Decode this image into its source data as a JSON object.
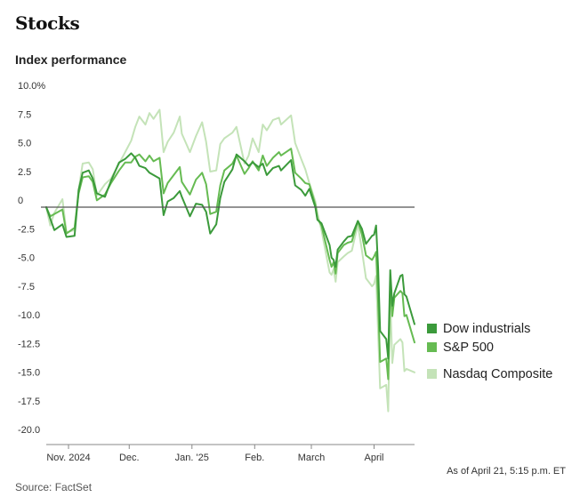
{
  "header": {
    "title": "Stocks",
    "subtitle": "Index performance"
  },
  "footer": {
    "as_of": "As of April 21, 5:15 p.m. ET",
    "source": "Source: FactSet"
  },
  "colors": {
    "dow": "#3b9a3b",
    "sp500": "#66bb52",
    "nasdaq": "#c4e3b8",
    "zero_line": "#555555",
    "grid": "#dddddd"
  },
  "chart_data": {
    "type": "line",
    "title": "Index performance",
    "xlabel": "",
    "ylabel": "",
    "ylim": [
      -20,
      10
    ],
    "xlim": [
      "2024-10-21",
      "2025-04-21"
    ],
    "yticks": [
      {
        "value": 10,
        "label": "10.0%"
      },
      {
        "value": 7.5,
        "label": "7.5"
      },
      {
        "value": 5,
        "label": "5.0"
      },
      {
        "value": 2.5,
        "label": "2.5"
      },
      {
        "value": 0,
        "label": "0"
      },
      {
        "value": -2.5,
        "label": "-2.5"
      },
      {
        "value": -5,
        "label": "-5.0"
      },
      {
        "value": -7.5,
        "label": "-7.5"
      },
      {
        "value": -10,
        "label": "-10.0"
      },
      {
        "value": -12.5,
        "label": "-12.5"
      },
      {
        "value": -15,
        "label": "-15.0"
      },
      {
        "value": -17.5,
        "label": "-17.5"
      },
      {
        "value": -20,
        "label": "-20.0"
      }
    ],
    "xticks": [
      {
        "date": "2024-11-01",
        "label": "Nov. 2024"
      },
      {
        "date": "2024-12-01",
        "label": "Dec."
      },
      {
        "date": "2025-01-01",
        "label": "Jan. '25"
      },
      {
        "date": "2025-02-01",
        "label": "Feb."
      },
      {
        "date": "2025-03-01",
        "label": "March"
      },
      {
        "date": "2025-04-01",
        "label": "April"
      }
    ],
    "legend": "right",
    "grid": false,
    "series": [
      {
        "name": "Nasdaq Composite",
        "color": "#c4e3b8",
        "points": [
          [
            "2024-10-21",
            0.0
          ],
          [
            "2024-10-23",
            -1.6
          ],
          [
            "2024-10-25",
            -0.5
          ],
          [
            "2024-10-29",
            0.7
          ],
          [
            "2024-10-31",
            -2.2
          ],
          [
            "2024-11-04",
            -2.0
          ],
          [
            "2024-11-06",
            1.5
          ],
          [
            "2024-11-08",
            3.8
          ],
          [
            "2024-11-11",
            3.9
          ],
          [
            "2024-11-13",
            3.3
          ],
          [
            "2024-11-15",
            1.0
          ],
          [
            "2024-11-19",
            2.0
          ],
          [
            "2024-11-22",
            2.5
          ],
          [
            "2024-11-26",
            3.8
          ],
          [
            "2024-11-29",
            4.8
          ],
          [
            "2024-12-02",
            5.8
          ],
          [
            "2024-12-04",
            7.0
          ],
          [
            "2024-12-06",
            7.9
          ],
          [
            "2024-12-09",
            7.2
          ],
          [
            "2024-12-11",
            8.2
          ],
          [
            "2024-12-13",
            7.7
          ],
          [
            "2024-12-16",
            8.5
          ],
          [
            "2024-12-18",
            4.8
          ],
          [
            "2024-12-20",
            5.7
          ],
          [
            "2024-12-23",
            6.5
          ],
          [
            "2024-12-26",
            7.9
          ],
          [
            "2024-12-27",
            6.4
          ],
          [
            "2024-12-31",
            4.8
          ],
          [
            "2025-01-03",
            6.2
          ],
          [
            "2025-01-06",
            7.4
          ],
          [
            "2025-01-08",
            5.7
          ],
          [
            "2025-01-10",
            3.1
          ],
          [
            "2025-01-13",
            3.2
          ],
          [
            "2025-01-15",
            5.5
          ],
          [
            "2025-01-17",
            6.0
          ],
          [
            "2025-01-21",
            6.5
          ],
          [
            "2025-01-23",
            7.0
          ],
          [
            "2025-01-27",
            3.8
          ],
          [
            "2025-01-29",
            4.5
          ],
          [
            "2025-01-31",
            6.0
          ],
          [
            "2025-02-03",
            4.8
          ],
          [
            "2025-02-05",
            7.2
          ],
          [
            "2025-02-07",
            6.7
          ],
          [
            "2025-02-10",
            7.6
          ],
          [
            "2025-02-13",
            7.8
          ],
          [
            "2025-02-14",
            7.2
          ],
          [
            "2025-02-19",
            8.0
          ],
          [
            "2025-02-21",
            5.6
          ],
          [
            "2025-02-24",
            4.2
          ],
          [
            "2025-02-26",
            3.3
          ],
          [
            "2025-02-28",
            2.1
          ],
          [
            "2025-03-03",
            0.5
          ],
          [
            "2025-03-04",
            -0.5
          ],
          [
            "2025-03-06",
            -2.0
          ],
          [
            "2025-03-10",
            -5.7
          ],
          [
            "2025-03-11",
            -5.9
          ],
          [
            "2025-03-12",
            -5.4
          ],
          [
            "2025-03-13",
            -6.5
          ],
          [
            "2025-03-14",
            -4.8
          ],
          [
            "2025-03-17",
            -4.3
          ],
          [
            "2025-03-19",
            -4.0
          ],
          [
            "2025-03-21",
            -3.8
          ],
          [
            "2025-03-24",
            -1.5
          ],
          [
            "2025-03-26",
            -3.8
          ],
          [
            "2025-03-28",
            -6.2
          ],
          [
            "2025-03-31",
            -6.9
          ],
          [
            "2025-04-01",
            -6.7
          ],
          [
            "2025-04-02",
            -6.0
          ],
          [
            "2025-04-03",
            -11.0
          ],
          [
            "2025-04-04",
            -15.8
          ],
          [
            "2025-04-07",
            -15.5
          ],
          [
            "2025-04-08",
            -17.8
          ],
          [
            "2025-04-09",
            -7.8
          ],
          [
            "2025-04-10",
            -13.6
          ],
          [
            "2025-04-11",
            -12.0
          ],
          [
            "2025-04-14",
            -11.5
          ],
          [
            "2025-04-15",
            -11.8
          ],
          [
            "2025-04-16",
            -14.3
          ],
          [
            "2025-04-17",
            -14.1
          ],
          [
            "2025-04-21",
            -14.4
          ]
        ]
      },
      {
        "name": "S&P 500",
        "color": "#66bb52",
        "points": [
          [
            "2024-10-21",
            0.0
          ],
          [
            "2024-10-23",
            -0.8
          ],
          [
            "2024-10-25",
            -0.6
          ],
          [
            "2024-10-29",
            -0.2
          ],
          [
            "2024-10-31",
            -2.3
          ],
          [
            "2024-11-04",
            -1.8
          ],
          [
            "2024-11-06",
            1.2
          ],
          [
            "2024-11-08",
            2.6
          ],
          [
            "2024-11-11",
            2.7
          ],
          [
            "2024-11-13",
            2.2
          ],
          [
            "2024-11-15",
            0.6
          ],
          [
            "2024-11-19",
            1.1
          ],
          [
            "2024-11-22",
            2.1
          ],
          [
            "2024-11-26",
            3.2
          ],
          [
            "2024-11-29",
            3.9
          ],
          [
            "2024-12-02",
            3.9
          ],
          [
            "2024-12-04",
            4.4
          ],
          [
            "2024-12-06",
            4.6
          ],
          [
            "2024-12-09",
            4.0
          ],
          [
            "2024-12-11",
            4.5
          ],
          [
            "2024-12-13",
            4.0
          ],
          [
            "2024-12-16",
            4.3
          ],
          [
            "2024-12-18",
            1.2
          ],
          [
            "2024-12-20",
            2.1
          ],
          [
            "2024-12-23",
            2.8
          ],
          [
            "2024-12-26",
            3.5
          ],
          [
            "2024-12-27",
            2.2
          ],
          [
            "2024-12-31",
            1.1
          ],
          [
            "2025-01-03",
            2.4
          ],
          [
            "2025-01-06",
            3.0
          ],
          [
            "2025-01-08",
            2.0
          ],
          [
            "2025-01-10",
            -0.6
          ],
          [
            "2025-01-13",
            -0.4
          ],
          [
            "2025-01-15",
            1.9
          ],
          [
            "2025-01-17",
            3.2
          ],
          [
            "2025-01-21",
            3.8
          ],
          [
            "2025-01-23",
            4.5
          ],
          [
            "2025-01-27",
            2.9
          ],
          [
            "2025-01-29",
            3.4
          ],
          [
            "2025-01-31",
            4.0
          ],
          [
            "2025-02-03",
            3.2
          ],
          [
            "2025-02-05",
            4.5
          ],
          [
            "2025-02-07",
            3.6
          ],
          [
            "2025-02-10",
            4.3
          ],
          [
            "2025-02-13",
            4.8
          ],
          [
            "2025-02-14",
            4.5
          ],
          [
            "2025-02-19",
            5.1
          ],
          [
            "2025-02-21",
            3.0
          ],
          [
            "2025-02-24",
            2.5
          ],
          [
            "2025-02-26",
            2.1
          ],
          [
            "2025-02-28",
            2.0
          ],
          [
            "2025-03-03",
            0.2
          ],
          [
            "2025-03-04",
            -1.0
          ],
          [
            "2025-03-06",
            -1.6
          ],
          [
            "2025-03-10",
            -4.6
          ],
          [
            "2025-03-11",
            -5.2
          ],
          [
            "2025-03-12",
            -4.8
          ],
          [
            "2025-03-13",
            -5.8
          ],
          [
            "2025-03-14",
            -4.0
          ],
          [
            "2025-03-17",
            -3.3
          ],
          [
            "2025-03-19",
            -3.1
          ],
          [
            "2025-03-21",
            -3.0
          ],
          [
            "2025-03-24",
            -1.2
          ],
          [
            "2025-03-26",
            -2.4
          ],
          [
            "2025-03-28",
            -4.2
          ],
          [
            "2025-03-31",
            -4.6
          ],
          [
            "2025-04-01",
            -4.3
          ],
          [
            "2025-04-02",
            -3.9
          ],
          [
            "2025-04-03",
            -8.4
          ],
          [
            "2025-04-04",
            -13.5
          ],
          [
            "2025-04-07",
            -13.2
          ],
          [
            "2025-04-08",
            -15.0
          ],
          [
            "2025-04-09",
            -6.4
          ],
          [
            "2025-04-10",
            -9.5
          ],
          [
            "2025-04-11",
            -7.9
          ],
          [
            "2025-04-14",
            -7.3
          ],
          [
            "2025-04-15",
            -7.5
          ],
          [
            "2025-04-16",
            -9.5
          ],
          [
            "2025-04-17",
            -9.4
          ],
          [
            "2025-04-21",
            -11.8
          ]
        ]
      },
      {
        "name": "Dow industrials",
        "color": "#3b9a3b",
        "points": [
          [
            "2024-10-21",
            0.0
          ],
          [
            "2024-10-23",
            -1.0
          ],
          [
            "2024-10-25",
            -2.0
          ],
          [
            "2024-10-29",
            -1.5
          ],
          [
            "2024-10-31",
            -2.6
          ],
          [
            "2024-11-04",
            -2.5
          ],
          [
            "2024-11-06",
            1.5
          ],
          [
            "2024-11-08",
            3.0
          ],
          [
            "2024-11-11",
            3.2
          ],
          [
            "2024-11-13",
            2.5
          ],
          [
            "2024-11-15",
            1.2
          ],
          [
            "2024-11-19",
            0.9
          ],
          [
            "2024-11-22",
            2.3
          ],
          [
            "2024-11-26",
            3.9
          ],
          [
            "2024-11-29",
            4.2
          ],
          [
            "2024-12-02",
            4.7
          ],
          [
            "2024-12-04",
            4.3
          ],
          [
            "2024-12-06",
            3.6
          ],
          [
            "2024-12-09",
            3.4
          ],
          [
            "2024-12-11",
            3.0
          ],
          [
            "2024-12-13",
            2.8
          ],
          [
            "2024-12-16",
            2.5
          ],
          [
            "2024-12-18",
            -0.7
          ],
          [
            "2024-12-20",
            0.5
          ],
          [
            "2024-12-23",
            0.8
          ],
          [
            "2024-12-26",
            1.4
          ],
          [
            "2024-12-27",
            0.9
          ],
          [
            "2024-12-31",
            -0.8
          ],
          [
            "2025-01-03",
            0.3
          ],
          [
            "2025-01-06",
            0.2
          ],
          [
            "2025-01-08",
            -0.4
          ],
          [
            "2025-01-10",
            -2.3
          ],
          [
            "2025-01-13",
            -1.5
          ],
          [
            "2025-01-15",
            0.8
          ],
          [
            "2025-01-17",
            2.2
          ],
          [
            "2025-01-21",
            3.3
          ],
          [
            "2025-01-23",
            4.6
          ],
          [
            "2025-01-27",
            4.0
          ],
          [
            "2025-01-29",
            3.6
          ],
          [
            "2025-01-31",
            3.9
          ],
          [
            "2025-02-03",
            3.5
          ],
          [
            "2025-02-05",
            3.8
          ],
          [
            "2025-02-07",
            2.8
          ],
          [
            "2025-02-10",
            3.4
          ],
          [
            "2025-02-13",
            3.6
          ],
          [
            "2025-02-14",
            3.2
          ],
          [
            "2025-02-19",
            4.1
          ],
          [
            "2025-02-21",
            1.9
          ],
          [
            "2025-02-24",
            1.5
          ],
          [
            "2025-02-26",
            1.0
          ],
          [
            "2025-02-28",
            1.6
          ],
          [
            "2025-03-03",
            0.0
          ],
          [
            "2025-03-04",
            -1.1
          ],
          [
            "2025-03-06",
            -1.4
          ],
          [
            "2025-03-10",
            -3.3
          ],
          [
            "2025-03-11",
            -4.4
          ],
          [
            "2025-03-12",
            -4.6
          ],
          [
            "2025-03-13",
            -5.2
          ],
          [
            "2025-03-14",
            -3.7
          ],
          [
            "2025-03-17",
            -3.0
          ],
          [
            "2025-03-19",
            -2.6
          ],
          [
            "2025-03-21",
            -2.5
          ],
          [
            "2025-03-24",
            -1.2
          ],
          [
            "2025-03-26",
            -1.9
          ],
          [
            "2025-03-28",
            -3.2
          ],
          [
            "2025-03-31",
            -2.5
          ],
          [
            "2025-04-01",
            -2.4
          ],
          [
            "2025-04-02",
            -1.6
          ],
          [
            "2025-04-03",
            -5.4
          ],
          [
            "2025-04-04",
            -10.8
          ],
          [
            "2025-04-07",
            -11.5
          ],
          [
            "2025-04-08",
            -13.2
          ],
          [
            "2025-04-09",
            -5.5
          ],
          [
            "2025-04-10",
            -8.6
          ],
          [
            "2025-04-11",
            -7.5
          ],
          [
            "2025-04-14",
            -6.0
          ],
          [
            "2025-04-15",
            -5.9
          ],
          [
            "2025-04-16",
            -7.6
          ],
          [
            "2025-04-17",
            -7.8
          ],
          [
            "2025-04-21",
            -10.2
          ]
        ]
      }
    ]
  }
}
